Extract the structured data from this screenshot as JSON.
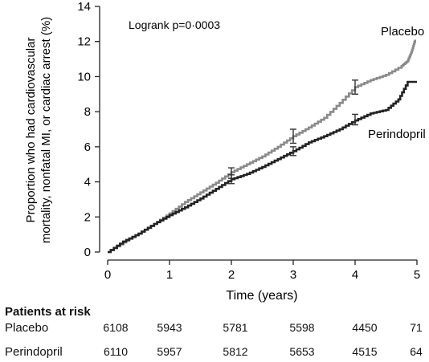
{
  "chart_data": {
    "type": "line",
    "annotation": "Logrank p=0·0003",
    "xlabel": "Time (years)",
    "ylabel_lines": [
      "Proportion who had cardiovascular",
      "mortality, nonfatal MI, or cardiac arrest (%)"
    ],
    "xlim": [
      0,
      5
    ],
    "ylim": [
      0,
      14
    ],
    "x_ticks": [
      "0",
      "1",
      "2",
      "3",
      "4",
      "5"
    ],
    "y_ticks": [
      "0",
      "2",
      "4",
      "6",
      "8",
      "10",
      "12",
      "14"
    ],
    "series": [
      {
        "name": "Placebo",
        "color": "#8a8a8a",
        "x": [
          0,
          0.25,
          0.5,
          0.75,
          1.0,
          1.25,
          1.5,
          1.75,
          2.0,
          2.25,
          2.5,
          2.75,
          3.0,
          3.25,
          3.5,
          3.75,
          4.0,
          4.25,
          4.5,
          4.75,
          4.85,
          4.92,
          4.97
        ],
        "y": [
          0,
          0.55,
          1.05,
          1.6,
          2.2,
          2.85,
          3.4,
          3.95,
          4.55,
          5.0,
          5.45,
          6.0,
          6.6,
          7.1,
          7.65,
          8.5,
          9.4,
          9.8,
          10.1,
          10.6,
          10.9,
          11.5,
          12.1
        ],
        "label": "Placebo",
        "error_bars": [
          {
            "x": 2,
            "y": 4.5,
            "low": 4.2,
            "high": 4.8
          },
          {
            "x": 3,
            "y": 6.6,
            "low": 6.2,
            "high": 7.0
          },
          {
            "x": 4,
            "y": 9.4,
            "low": 9.0,
            "high": 9.8
          }
        ]
      },
      {
        "name": "Perindopril",
        "color": "#222222",
        "x": [
          0,
          0.25,
          0.5,
          0.75,
          1.0,
          1.25,
          1.5,
          1.75,
          2.0,
          2.25,
          2.5,
          2.75,
          3.0,
          3.25,
          3.5,
          3.75,
          4.0,
          4.25,
          4.5,
          4.7,
          4.85,
          5.0
        ],
        "y": [
          0,
          0.6,
          1.05,
          1.6,
          2.1,
          2.55,
          3.05,
          3.6,
          4.15,
          4.45,
          4.85,
          5.3,
          5.75,
          6.25,
          6.6,
          7.0,
          7.5,
          7.9,
          8.1,
          8.7,
          9.7,
          9.7
        ],
        "label": "Perindopril",
        "error_bars": [
          {
            "x": 2,
            "y": 4.15,
            "low": 3.9,
            "high": 4.4
          },
          {
            "x": 3,
            "y": 5.75,
            "low": 5.5,
            "high": 6.0
          },
          {
            "x": 4,
            "y": 7.55,
            "low": 7.25,
            "high": 7.85
          }
        ]
      }
    ]
  },
  "risk_table": {
    "title": "Patients at risk",
    "rows": [
      {
        "label": "Placebo",
        "values": [
          "6108",
          "5943",
          "5781",
          "5598",
          "4450",
          "71"
        ]
      },
      {
        "label": "Perindopril",
        "values": [
          "6110",
          "5957",
          "5812",
          "5653",
          "4515",
          "64"
        ]
      }
    ]
  }
}
